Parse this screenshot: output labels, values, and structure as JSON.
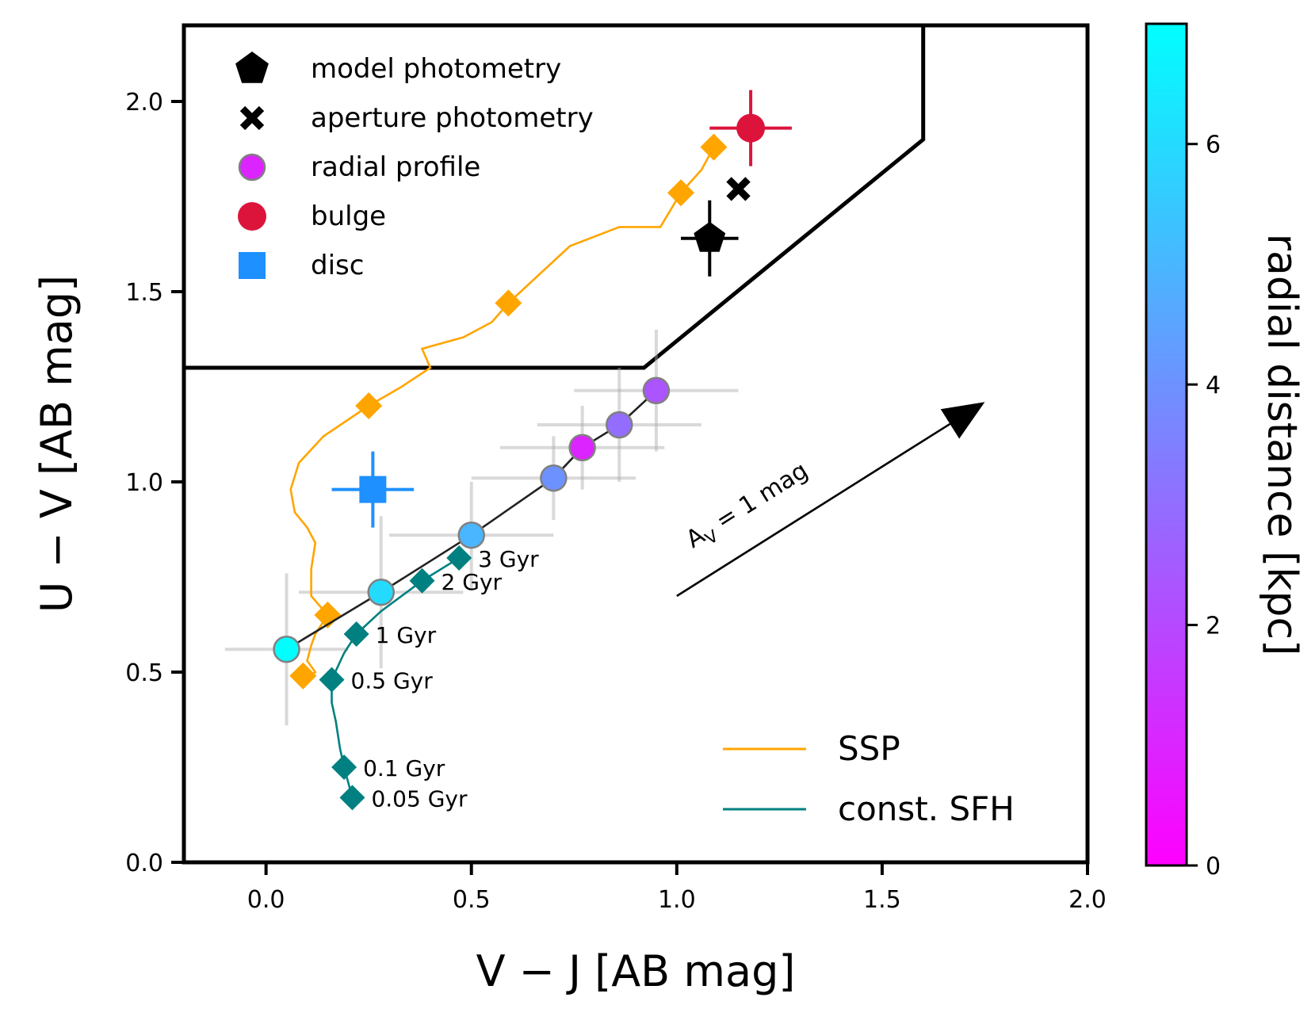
{
  "chart_data": {
    "type": "scatter",
    "xlabel": "V − J [AB mag]",
    "ylabel": "U − V [AB mag]",
    "xlim": [
      -0.2,
      2.0
    ],
    "ylim": [
      0.0,
      2.2
    ],
    "xticks": [
      {
        "value": 0.0,
        "label": "0.0"
      },
      {
        "value": 0.5,
        "label": "0.5"
      },
      {
        "value": 1.0,
        "label": "1.0"
      },
      {
        "value": 1.5,
        "label": "1.5"
      },
      {
        "value": 2.0,
        "label": "2.0"
      }
    ],
    "yticks": [
      {
        "value": 0.0,
        "label": "0.0"
      },
      {
        "value": 0.5,
        "label": "0.5"
      },
      {
        "value": 1.0,
        "label": "1.0"
      },
      {
        "value": 1.5,
        "label": "1.5"
      },
      {
        "value": 2.0,
        "label": "2.0"
      }
    ],
    "grid": false,
    "quiescent_boundary": [
      [
        -0.2,
        1.3
      ],
      [
        0.92,
        1.3
      ],
      [
        1.6,
        1.9
      ],
      [
        1.6,
        2.2
      ]
    ],
    "ssp_track": {
      "name": "SSP",
      "color": "#ffa500",
      "line": [
        [
          0.09,
          0.48
        ],
        [
          0.12,
          0.5
        ],
        [
          0.1,
          0.53
        ],
        [
          0.11,
          0.57
        ],
        [
          0.12,
          0.6
        ],
        [
          0.15,
          0.65
        ],
        [
          0.11,
          0.7
        ],
        [
          0.11,
          0.77
        ],
        [
          0.12,
          0.84
        ],
        [
          0.1,
          0.88
        ],
        [
          0.07,
          0.92
        ],
        [
          0.06,
          0.98
        ],
        [
          0.08,
          1.05
        ],
        [
          0.14,
          1.12
        ],
        [
          0.25,
          1.2
        ],
        [
          0.33,
          1.25
        ],
        [
          0.4,
          1.3
        ],
        [
          0.38,
          1.35
        ],
        [
          0.48,
          1.38
        ],
        [
          0.55,
          1.42
        ],
        [
          0.59,
          1.47
        ],
        [
          0.67,
          1.55
        ],
        [
          0.74,
          1.62
        ],
        [
          0.86,
          1.67
        ],
        [
          0.96,
          1.67
        ],
        [
          1.01,
          1.76
        ],
        [
          1.06,
          1.82
        ],
        [
          1.09,
          1.88
        ]
      ],
      "markers": [
        [
          0.09,
          0.49
        ],
        [
          0.15,
          0.65
        ],
        [
          0.25,
          1.2
        ],
        [
          0.59,
          1.47
        ],
        [
          1.01,
          1.76
        ],
        [
          1.09,
          1.88
        ]
      ]
    },
    "sfh_track": {
      "name": "const. SFH",
      "color": "#008080",
      "line": [
        [
          0.21,
          0.17
        ],
        [
          0.2,
          0.21
        ],
        [
          0.19,
          0.25
        ],
        [
          0.18,
          0.3
        ],
        [
          0.17,
          0.37
        ],
        [
          0.16,
          0.42
        ],
        [
          0.16,
          0.48
        ],
        [
          0.19,
          0.55
        ],
        [
          0.22,
          0.6
        ],
        [
          0.28,
          0.66
        ],
        [
          0.38,
          0.74
        ],
        [
          0.47,
          0.8
        ]
      ],
      "markers": [
        [
          0.21,
          0.17
        ],
        [
          0.19,
          0.25
        ],
        [
          0.16,
          0.48
        ],
        [
          0.22,
          0.6
        ],
        [
          0.38,
          0.74
        ],
        [
          0.47,
          0.8
        ]
      ],
      "age_labels": [
        {
          "x": 0.21,
          "y": 0.17,
          "label": "0.05 Gyr"
        },
        {
          "x": 0.19,
          "y": 0.25,
          "label": "0.1 Gyr"
        },
        {
          "x": 0.16,
          "y": 0.48,
          "label": "0.5 Gyr"
        },
        {
          "x": 0.22,
          "y": 0.6,
          "label": "1 Gyr"
        },
        {
          "x": 0.38,
          "y": 0.74,
          "label": "2 Gyr"
        },
        {
          "x": 0.47,
          "y": 0.8,
          "label": "3 Gyr"
        }
      ]
    },
    "radial_profile": {
      "name": "radial profile",
      "points": [
        {
          "x": 0.05,
          "y": 0.56,
          "xerr": 0.15,
          "yerr": 0.2,
          "r": 7.0
        },
        {
          "x": 0.28,
          "y": 0.71,
          "xerr": 0.2,
          "yerr": 0.2,
          "r": 6.0
        },
        {
          "x": 0.5,
          "y": 0.86,
          "xerr": 0.2,
          "yerr": 0.14,
          "r": 5.0
        },
        {
          "x": 0.7,
          "y": 1.01,
          "xerr": 0.2,
          "yerr": 0.11,
          "r": 4.0
        },
        {
          "x": 0.86,
          "y": 1.15,
          "xerr": 0.2,
          "yerr": 0.15,
          "r": 3.0
        },
        {
          "x": 0.95,
          "y": 1.24,
          "xerr": 0.2,
          "yerr": 0.16,
          "r": 2.3
        },
        {
          "x": 0.77,
          "y": 1.09,
          "xerr": 0.2,
          "yerr": 0.11,
          "r": 1.0
        }
      ]
    },
    "bulge": {
      "name": "bulge",
      "color": "#dc143c",
      "x": 1.18,
      "y": 1.93,
      "xerr": 0.1,
      "yerr": 0.1
    },
    "aperture_photometry": {
      "name": "aperture photometry",
      "x": 1.15,
      "y": 1.77
    },
    "model_photometry": {
      "name": "model photometry",
      "x": 1.08,
      "y": 1.64,
      "xerr": 0.07,
      "yerr": 0.1
    },
    "disc": {
      "name": "disc",
      "color": "#1e90ff",
      "x": 0.26,
      "y": 0.98,
      "xerr": 0.1,
      "yerr": 0.1
    },
    "extinction_arrow": {
      "label": "A_V = 1 mag",
      "label_main": "A",
      "label_sub": "V",
      "label_rest": " = 1 mag",
      "x0": 1.0,
      "y0": 0.7,
      "x1": 1.75,
      "y1": 1.21
    },
    "legend_markers": {
      "position": "top-left",
      "entries": [
        "model photometry",
        "aperture photometry",
        "radial profile",
        "bulge",
        "disc"
      ]
    },
    "legend_lines": {
      "position": "bottom-right",
      "entries": [
        "SSP",
        "const. SFH"
      ]
    },
    "colorbar": {
      "label": "radial distance [kpc]",
      "range": [
        0,
        7
      ],
      "ticks": [
        {
          "value": 0,
          "label": "0"
        },
        {
          "value": 2,
          "label": "2"
        },
        {
          "value": 4,
          "label": "4"
        },
        {
          "value": 6,
          "label": "6"
        }
      ],
      "colormap": "cool-reversed",
      "color_low": "#ff00ff",
      "color_high": "#00ffff"
    }
  }
}
